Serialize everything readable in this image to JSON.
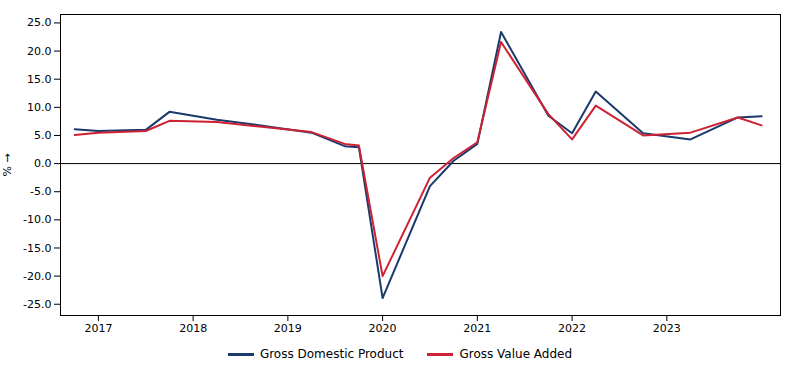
{
  "chart_data": {
    "type": "line",
    "y_label": "%",
    "x": [
      2016.75,
      2017.0,
      2017.5,
      2017.75,
      2018.25,
      2018.75,
      2019.25,
      2019.6,
      2019.75,
      2020.0,
      2020.5,
      2020.75,
      2021.0,
      2021.25,
      2021.75,
      2022.0,
      2022.25,
      2022.75,
      2023.25,
      2023.75,
      2024.0
    ],
    "series": [
      {
        "name": "Gross Domestic Product",
        "color": "#1a3a6b",
        "values": [
          6.1,
          5.8,
          6.0,
          9.2,
          7.8,
          6.7,
          5.5,
          3.1,
          2.9,
          -23.9,
          -4.0,
          0.5,
          3.5,
          23.4,
          8.5,
          5.4,
          12.8,
          5.4,
          4.3,
          8.2,
          8.4
        ]
      },
      {
        "name": "Gross Value Added",
        "color": "#cc2233",
        "values": [
          5.1,
          5.5,
          5.8,
          7.6,
          7.4,
          6.5,
          5.6,
          3.5,
          3.2,
          -20.0,
          -2.5,
          1.0,
          3.8,
          21.6,
          8.8,
          4.3,
          10.3,
          5.0,
          5.5,
          8.2,
          6.8
        ]
      }
    ],
    "xlim": [
      2016.6,
      2024.2
    ],
    "xticks": [
      2017,
      2018,
      2019,
      2020,
      2021,
      2022,
      2023
    ],
    "ylim": [
      -27,
      26.5
    ],
    "yticks": [
      {
        "value": -25.0,
        "label": "-25.0"
      },
      {
        "value": -20.0,
        "label": "-20.0"
      },
      {
        "value": -15.0,
        "label": "-15.0"
      },
      {
        "value": -10.0,
        "label": "-10.0"
      },
      {
        "value": -5.0,
        "label": "-5.0"
      },
      {
        "value": 0.0,
        "label": "0.0"
      },
      {
        "value": 5.0,
        "label": "5.0"
      },
      {
        "value": 10.0,
        "label": "10.0"
      },
      {
        "value": 15.0,
        "label": "15.0"
      },
      {
        "value": 20.0,
        "label": "20.0"
      },
      {
        "value": 25.0,
        "label": "25.0"
      }
    ],
    "grid": false,
    "legend": "bottom"
  }
}
